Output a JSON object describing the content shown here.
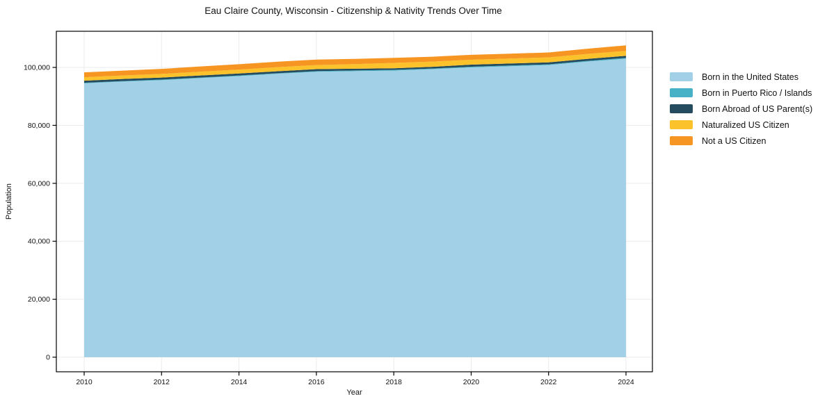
{
  "title": "Eau Claire County, Wisconsin - Citizenship & Nativity Trends Over Time",
  "chart_data": {
    "type": "area",
    "stacked": true,
    "title": "Eau Claire County, Wisconsin - Citizenship & Nativity Trends Over Time",
    "xlabel": "Year",
    "ylabel": "Population",
    "grid": true,
    "legend_position": "right",
    "x": [
      2010,
      2011,
      2012,
      2013,
      2014,
      2015,
      2016,
      2017,
      2018,
      2019,
      2020,
      2021,
      2022,
      2023,
      2024
    ],
    "xlim": [
      2009.3,
      2024.7
    ],
    "ylim": [
      0,
      112000
    ],
    "xticks": [
      2010,
      2012,
      2014,
      2016,
      2018,
      2020,
      2022,
      2024
    ],
    "xtick_labels": [
      "2010",
      "2012",
      "2014",
      "2016",
      "2018",
      "2020",
      "2022",
      "2024"
    ],
    "yticks": [
      0,
      20000,
      40000,
      60000,
      80000,
      100000
    ],
    "ytick_labels": [
      "0",
      "20,000",
      "40,000",
      "60,000",
      "80,000",
      "100,000"
    ],
    "series": [
      {
        "name": "Born in the United States",
        "color": "#a2d1e7",
        "values": [
          94500,
          95100,
          95600,
          96300,
          97000,
          97800,
          98500,
          98700,
          98900,
          99400,
          100000,
          100400,
          100800,
          102000,
          103000
        ]
      },
      {
        "name": "Born in Puerto Rico / Islands",
        "color": "#47b1c6",
        "values": [
          200,
          200,
          200,
          200,
          200,
          200,
          200,
          250,
          250,
          200,
          250,
          250,
          250,
          250,
          300
        ]
      },
      {
        "name": "Born Abroad of US Parent(s)",
        "color": "#254b5e",
        "values": [
          700,
          700,
          700,
          720,
          700,
          680,
          700,
          600,
          550,
          600,
          700,
          700,
          700,
          700,
          700
        ]
      },
      {
        "name": "Naturalized US Citizen",
        "color": "#fcc22b",
        "values": [
          1200,
          1200,
          1250,
          1300,
          1350,
          1400,
          1400,
          1600,
          1850,
          1800,
          1700,
          1700,
          1700,
          1700,
          1700
        ]
      },
      {
        "name": "Not a US Citizen",
        "color": "#f79522",
        "values": [
          1700,
          1700,
          1750,
          1800,
          1850,
          1900,
          1900,
          1800,
          1750,
          1700,
          1700,
          1700,
          1700,
          1800,
          1900
        ]
      }
    ],
    "axis_color": "#000000",
    "grid_color": "#ebebeb",
    "background_color": "#ffffff"
  }
}
